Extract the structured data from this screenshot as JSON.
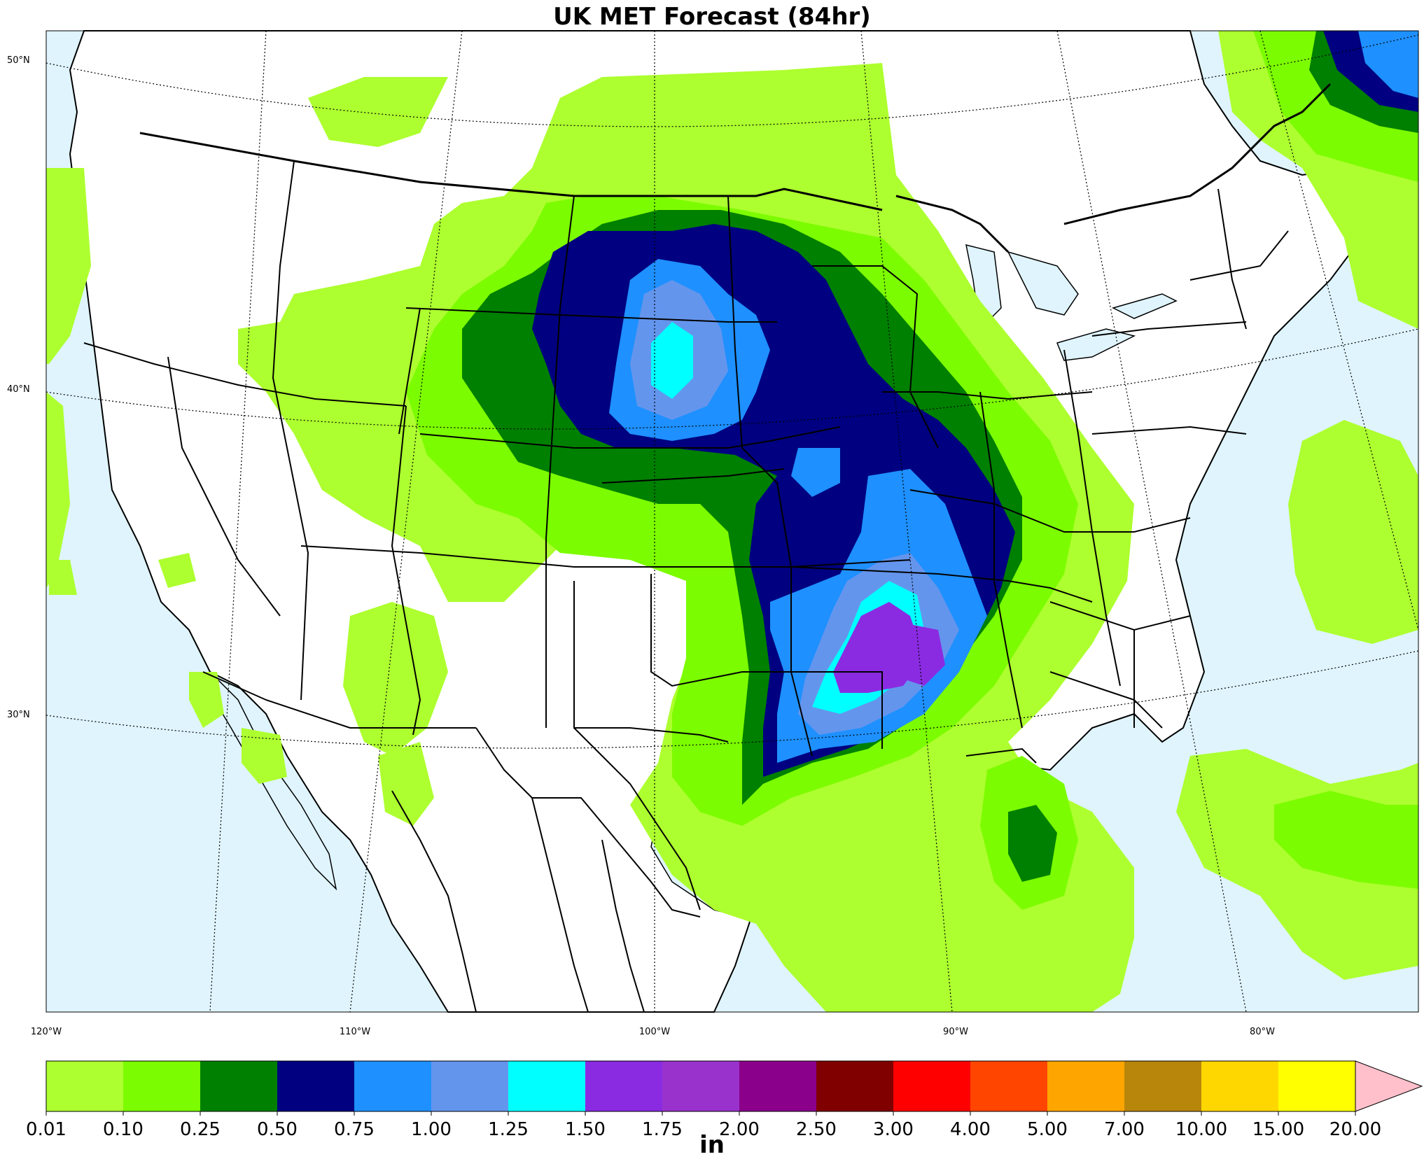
{
  "title": "UK MET Forecast (84hr)",
  "lat_labels": [
    "50°N",
    "40°N",
    "30°N"
  ],
  "lon_labels": [
    "120°W",
    "110°W",
    "100°W",
    "90°W",
    "80°W"
  ],
  "colorbar": {
    "unit": "in",
    "ticks": [
      "0.01",
      "0.10",
      "0.25",
      "0.50",
      "0.75",
      "1.00",
      "1.25",
      "1.50",
      "1.75",
      "2.00",
      "2.50",
      "3.00",
      "4.00",
      "5.00",
      "7.00",
      "10.00",
      "15.00",
      "20.00"
    ],
    "colors": [
      "#adff2f",
      "#7cfc00",
      "#008000",
      "#000080",
      "#1e90ff",
      "#6495ed",
      "#00ffff",
      "#8a2be2",
      "#9932cc",
      "#8b008b",
      "#800000",
      "#ff0000",
      "#ff4500",
      "#ffa500",
      "#b8860b",
      "#ffd700",
      "#ffff00"
    ],
    "extend_color": "#ffc0cb"
  },
  "colors": {
    "ocean": "#dff4fd",
    "land": "#ffffff",
    "border": "#000000"
  }
}
